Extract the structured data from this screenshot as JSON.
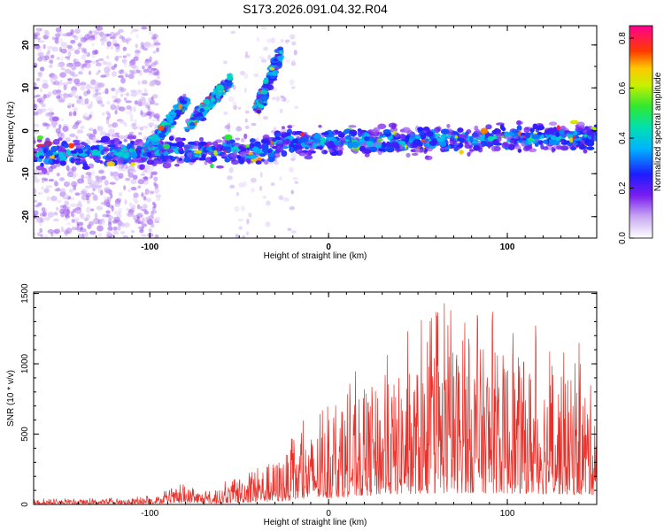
{
  "title": "S173.2026.091.04.32.R04",
  "colors": {
    "axis": "#000000",
    "line": "#e8312a",
    "background": "#ffffff"
  },
  "chart_data": [
    {
      "type": "heatmap",
      "xlabel": "Height of straight line (km)",
      "ylabel": "Frequency (Hz)",
      "xlim": [
        -165,
        150
      ],
      "ylim": [
        -25,
        24.5
      ],
      "xticks": [
        -100,
        0,
        100
      ],
      "xtick_labels": [
        "-100",
        "0",
        "100"
      ],
      "yticks": [
        -20,
        -10,
        0,
        10,
        20
      ],
      "ytick_labels": [
        "-20",
        "-10",
        "0",
        "10",
        "20"
      ],
      "colorbar": {
        "label": "Normalized spectral amplitude",
        "range": [
          0,
          0.85
        ],
        "ticks": [
          0.0,
          0.2,
          0.4,
          0.6,
          0.8
        ],
        "tick_labels": [
          "0.0",
          "0.2",
          "0.4",
          "0.6",
          "0.8"
        ]
      },
      "features": [
        {
          "name": "main-band",
          "x_range": [
            -165,
            150
          ],
          "freq_start": -5.5,
          "freq_end": -3.5,
          "width": 3,
          "peak_amplitude": 0.83
        },
        {
          "name": "rising-streak-1",
          "x_start": -102,
          "x_end": -80,
          "freq_start": -5,
          "freq_end": 7
        },
        {
          "name": "rising-streak-2",
          "x_start": -78,
          "x_end": -55,
          "freq_start": 1,
          "freq_end": 12
        },
        {
          "name": "rising-streak-3",
          "x_start": -40,
          "x_end": -27,
          "freq_start": 5,
          "freq_end": 18
        },
        {
          "name": "scatter-region",
          "x_range": [
            -165,
            -95
          ],
          "freq_range": [
            -25,
            24
          ]
        }
      ]
    },
    {
      "type": "line",
      "xlabel": "Height of straight line (km)",
      "ylabel": "SNR (10 * v/v)",
      "xlim": [
        -165,
        150
      ],
      "ylim": [
        0,
        1510
      ],
      "xticks": [
        -100,
        0,
        100
      ],
      "xtick_labels": [
        "-100",
        "0",
        "100"
      ],
      "yticks": [
        0,
        500,
        1000,
        1500
      ],
      "ytick_labels": [
        "0",
        "500",
        "1000",
        "1500"
      ],
      "envelope": {
        "x": [
          -165,
          -130,
          -110,
          -95,
          -80,
          -65,
          -50,
          -30,
          -10,
          10,
          30,
          50,
          70,
          90,
          110,
          130,
          150
        ],
        "low": [
          8,
          10,
          12,
          18,
          25,
          20,
          30,
          50,
          90,
          130,
          170,
          190,
          200,
          200,
          190,
          180,
          170
        ],
        "high": [
          45,
          45,
          50,
          80,
          160,
          90,
          260,
          400,
          650,
          900,
          1100,
          1300,
          1510,
          1450,
          1350,
          1200,
          1100
        ]
      }
    }
  ]
}
